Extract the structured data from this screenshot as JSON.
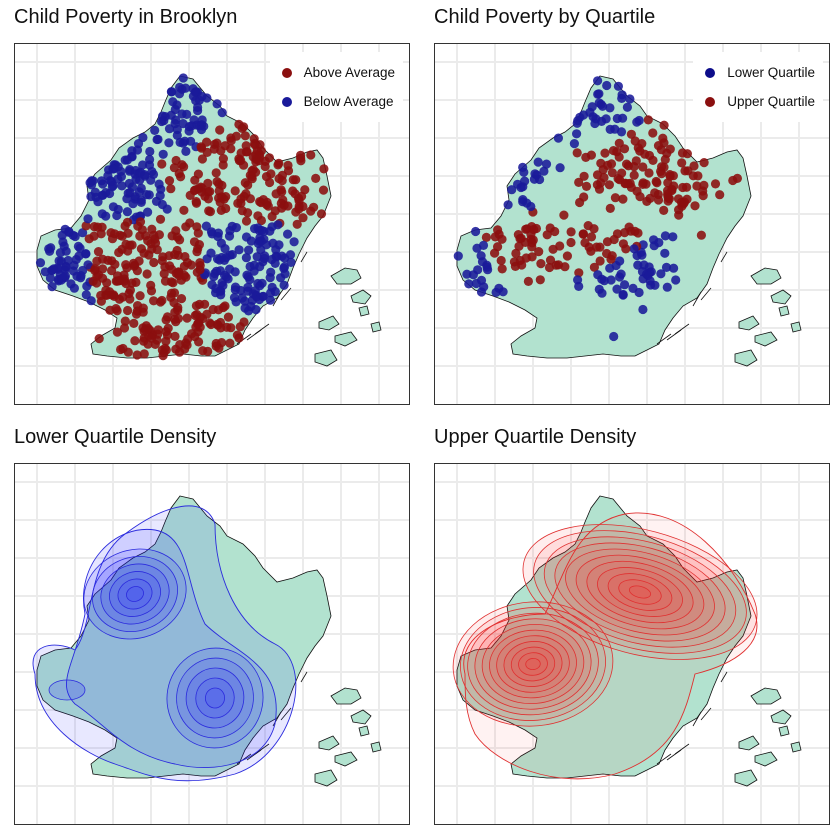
{
  "panels": [
    {
      "title": "Child Poverty in Brooklyn",
      "legend": [
        {
          "label": "Above Average",
          "color": "#8b0f0f"
        },
        {
          "label": "Below Average",
          "color": "#1a1a9a"
        }
      ]
    },
    {
      "title": "Child Poverty by Quartile",
      "legend": [
        {
          "label": "Lower Quartile",
          "color": "#0c0c8a"
        },
        {
          "label": "Upper Quartile",
          "color": "#8b0f0f"
        }
      ]
    },
    {
      "title": "Lower Quartile Density",
      "legend": []
    },
    {
      "title": "Upper Quartile Density",
      "legend": []
    }
  ],
  "colors": {
    "land": "#b2e2cf",
    "grid": "#ebebeb",
    "above": "#8b0f0f",
    "below": "#1a1a9a",
    "density_low": "#2222ff",
    "density_high": "#ff1a1a"
  }
}
